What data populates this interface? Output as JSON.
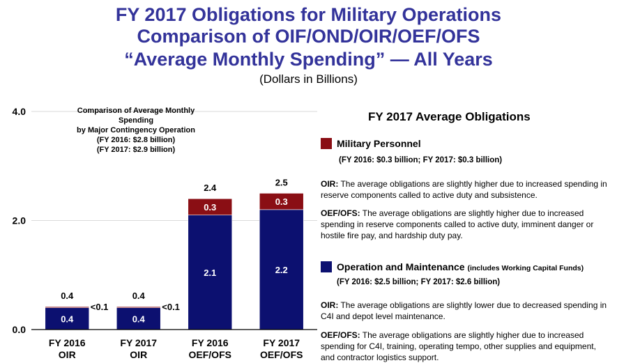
{
  "header": {
    "title_line1": "FY 2017 Obligations for Military Operations",
    "title_line2": "Comparison of OIF/OND/OIR/OEF/OFS",
    "title_line3": "“Average Monthly Spending” — All Years",
    "subtitle": "(Dollars in Billions)"
  },
  "inset": {
    "line1": "Comparison of Average Monthly Spending",
    "line2": "by Major Contingency Operation",
    "line3": "(FY 2016: $2.8 billion)",
    "line4": "(FY 2017: $2.9 billion)"
  },
  "chart_data": {
    "type": "bar",
    "stacked": true,
    "categories": [
      [
        "FY 2016",
        "OIR"
      ],
      [
        "FY 2017",
        "OIR"
      ],
      [
        "FY 2016",
        "OEF/OFS"
      ],
      [
        "FY 2017",
        "OEF/OFS"
      ]
    ],
    "series": [
      {
        "name": "Operation and Maintenance",
        "color": "#0c1070",
        "values": [
          0.4,
          0.4,
          2.1,
          2.2
        ],
        "labels": [
          "0.4",
          "0.4",
          "2.1",
          "2.2"
        ]
      },
      {
        "name": "Military Personnel",
        "color": "#8a0e14",
        "values": [
          0.02,
          0.02,
          0.3,
          0.3
        ],
        "labels": [
          "<0.1",
          "<0.1",
          "0.3",
          "0.3"
        ]
      }
    ],
    "totals": [
      "0.4",
      "0.4",
      "2.4",
      "2.5"
    ],
    "y_ticks": [
      "0.0",
      "2.0",
      "4.0"
    ],
    "ylim": [
      0,
      4.0
    ],
    "grid": true
  },
  "right_panel": {
    "heading": "FY 2017 Average Obligations",
    "mp": {
      "title": "Military Personnel",
      "amounts": "(FY 2016:  $0.3 billion;  FY 2017:  $0.3 billion)",
      "oir_label": "OIR:",
      "oir_text": " The average obligations are slightly higher due to increased spending in reserve components called to active duty and subsistence.",
      "oef_label": "OEF/OFS:",
      "oef_text": " The average obligations are slightly higher due to increased spending in reserve components called to active duty, imminent danger or hostile fire pay, and hardship duty pay."
    },
    "om": {
      "title": "Operation and Maintenance",
      "note": "(includes Working Capital Funds)",
      "amounts": "(FY 2016:  $2.5 billion;  FY 2017:  $2.6 billion)",
      "oir_label": "OIR:",
      "oir_text": " The average obligations are slightly lower due to decreased spending in C4I and depot level maintenance.",
      "oef_label": "OEF/OFS:",
      "oef_text": " The average obligations are slightly higher due to increased spending for C4I, training, operating tempo, other supplies and equipment, and contractor logistics support."
    },
    "colors": {
      "mp": "#8a0e14",
      "om": "#0c1070"
    }
  }
}
